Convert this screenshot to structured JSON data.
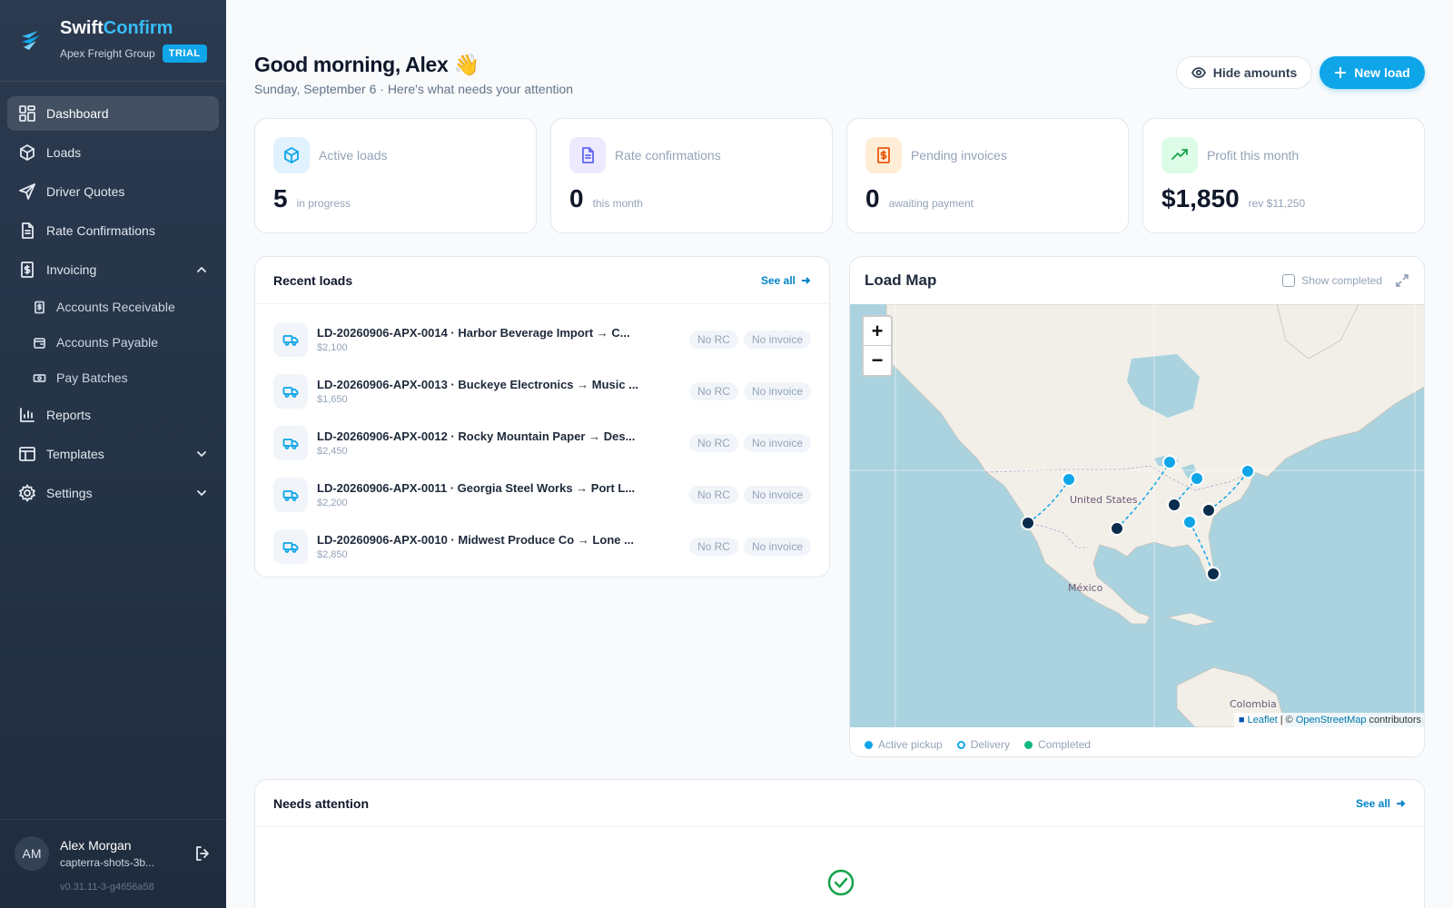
{
  "brand": {
    "name_a": "Swift",
    "name_b": "Confirm",
    "company": "Apex Freight Group",
    "plan_badge": "TRIAL"
  },
  "nav": {
    "dashboard": "Dashboard",
    "loads": "Loads",
    "driver_quotes": "Driver Quotes",
    "rate_confirmations": "Rate Confirmations",
    "invoicing": "Invoicing",
    "accounts_receivable": "Accounts Receivable",
    "accounts_payable": "Accounts Payable",
    "pay_batches": "Pay Batches",
    "reports": "Reports",
    "templates": "Templates",
    "settings": "Settings"
  },
  "user": {
    "initials": "AM",
    "name": "Alex Morgan",
    "email": "capterra-shots-3b...",
    "version": "v0.31.11-3-g4656a58"
  },
  "header": {
    "greeting": "Good morning, Alex 👋",
    "subtitle": "Sunday, September 6 · Here's what needs your attention",
    "hide_amounts": "Hide amounts",
    "new_load": "New load"
  },
  "stats": [
    {
      "label": "Active loads",
      "value": "5",
      "note": "in progress"
    },
    {
      "label": "Rate confirmations",
      "value": "0",
      "note": "this month"
    },
    {
      "label": "Pending invoices",
      "value": "0",
      "note": "awaiting payment"
    },
    {
      "label": "Profit this month",
      "value": "$1,850",
      "note": "rev $11,250"
    }
  ],
  "recent_loads": {
    "title": "Recent loads",
    "see_all": "See all",
    "items": [
      {
        "title": "LD-20260906-APX-0014 · Harbor Beverage Import → C...",
        "amount": "$2,100",
        "rc": "No RC",
        "invoice": "No invoice"
      },
      {
        "title": "LD-20260906-APX-0013 · Buckeye Electronics → Music ...",
        "amount": "$1,650",
        "rc": "No RC",
        "invoice": "No invoice"
      },
      {
        "title": "LD-20260906-APX-0012 · Rocky Mountain Paper → Des...",
        "amount": "$2,450",
        "rc": "No RC",
        "invoice": "No invoice"
      },
      {
        "title": "LD-20260906-APX-0011 · Georgia Steel Works → Port L...",
        "amount": "$2,200",
        "rc": "No RC",
        "invoice": "No invoice"
      },
      {
        "title": "LD-20260906-APX-0010 · Midwest Produce Co → Lone ...",
        "amount": "$2,850",
        "rc": "No RC",
        "invoice": "No invoice"
      }
    ]
  },
  "load_map": {
    "title": "Load Map",
    "show_completed": "Show completed",
    "labels": {
      "us": "United States",
      "mexico": "México",
      "colombia": "Colombia"
    },
    "attribution": {
      "leaflet": "Leaflet",
      "sep": " | © ",
      "osm": "OpenStreetMap",
      "tail": " contributors"
    },
    "legend": [
      {
        "label": "Active pickup",
        "color": "#0ea5e9"
      },
      {
        "label": "Delivery",
        "color": "#0ea5e9"
      },
      {
        "label": "Completed",
        "color": "#10b981"
      }
    ]
  },
  "needs_attention": {
    "title": "Needs attention",
    "see_all": "See all"
  }
}
